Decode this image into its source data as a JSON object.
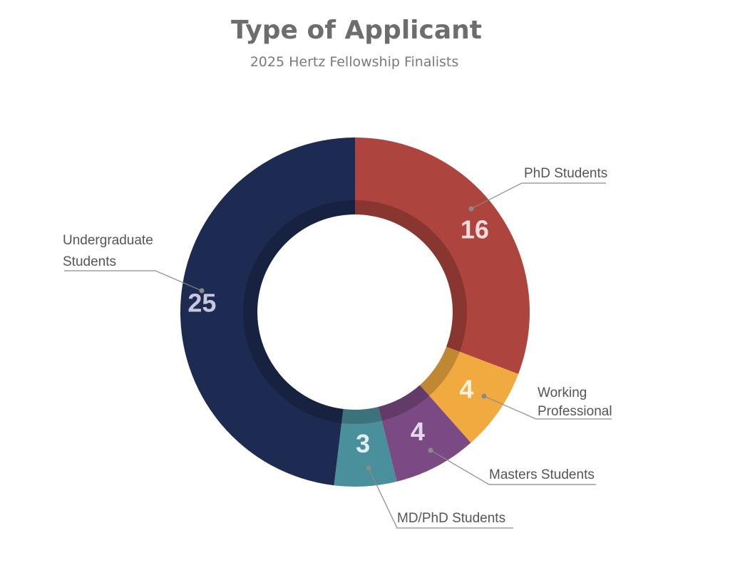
{
  "chart_data": {
    "type": "pie",
    "variant": "donut",
    "title": "Type of Applicant",
    "subtitle": "2025 Hertz Fellowship Finalists",
    "slices": [
      {
        "key": "phd",
        "label": "PhD Students",
        "value": 16,
        "color": "#ad443d",
        "value_color": "#f2dcdc"
      },
      {
        "key": "working",
        "label": "Working Professional",
        "value": 4,
        "color": "#f0aa40",
        "value_color": "#fdf1dc"
      },
      {
        "key": "masters",
        "label": "Masters Students",
        "value": 4,
        "color": "#7b4a84",
        "value_color": "#e5daea"
      },
      {
        "key": "mdphd",
        "label": "MD/PhD Students",
        "value": 3,
        "color": "#4a8f9c",
        "value_color": "#e2eef0"
      },
      {
        "key": "undergrad",
        "label": "Undergraduate Students",
        "value": 25,
        "color": "#1d2b52",
        "value_color": "#c8c8dc"
      }
    ],
    "legend": "none",
    "labels": "callouts"
  }
}
